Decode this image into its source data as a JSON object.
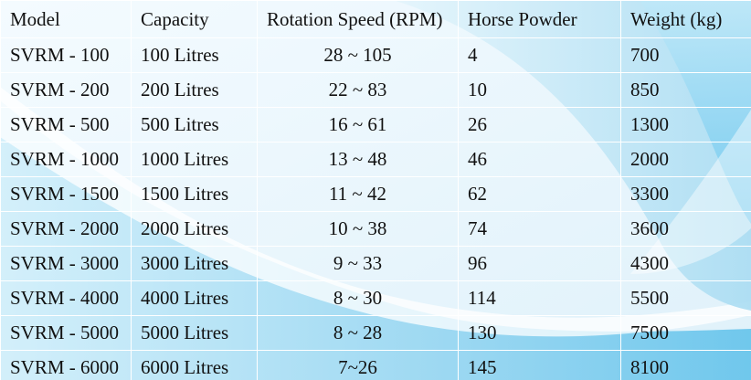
{
  "table": {
    "headers": [
      "Model",
      "Capacity",
      "Rotation Speed (RPM)",
      "Horse Powder",
      "Weight (kg)"
    ],
    "rows": [
      [
        "SVRM - 100",
        "100 Litres",
        "28 ~ 105",
        "4",
        "700"
      ],
      [
        "SVRM - 200",
        "200 Litres",
        "22 ~ 83",
        "10",
        "850"
      ],
      [
        "SVRM - 500",
        "500 Litres",
        "16 ~ 61",
        "26",
        "1300"
      ],
      [
        "SVRM - 1000",
        "1000 Litres",
        "13 ~ 48",
        "46",
        "2000"
      ],
      [
        "SVRM - 1500",
        "1500 Litres",
        "11 ~ 42",
        "62",
        "3300"
      ],
      [
        "SVRM - 2000",
        "2000 Litres",
        "10 ~ 38",
        "74",
        "3600"
      ],
      [
        "SVRM - 3000",
        "3000 Litres",
        "9 ~ 33",
        "96",
        "4300"
      ],
      [
        "SVRM - 4000",
        "4000 Litres",
        "8 ~ 30",
        "114",
        "5500"
      ],
      [
        "SVRM - 5000",
        "5000 Litres",
        "8 ~ 28",
        "130",
        "7500"
      ],
      [
        "SVRM - 6000",
        "6000 Litres",
        "7~26",
        "145",
        "8100"
      ]
    ]
  },
  "colors": {
    "cell_border": "#ffffff",
    "background_light": "#eef8fd",
    "background_blue": "#9fd8f0",
    "background_deep": "#5ec2ea"
  }
}
